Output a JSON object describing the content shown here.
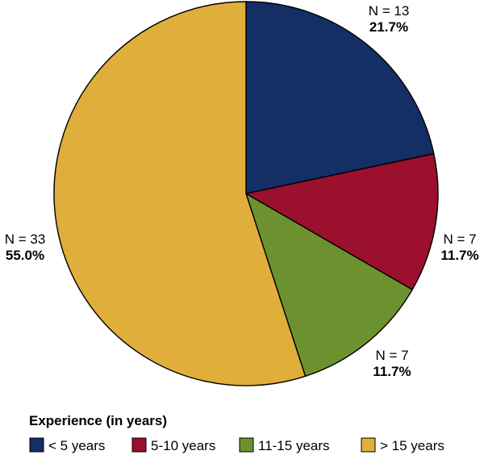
{
  "chart_data": {
    "type": "pie",
    "title": "",
    "legend_title": "Experience (in years)",
    "legend_position": "bottom",
    "start_angle": "top (12 o'clock), clockwise",
    "slices": [
      {
        "label": "< 5 years",
        "count": 13,
        "count_label": "N = 13",
        "percent": 21.7,
        "percent_label": "21.7%",
        "color": "#142f65"
      },
      {
        "label": "5-10 years",
        "count": 7,
        "count_label": "N = 7",
        "percent": 11.7,
        "percent_label": "11.7%",
        "color": "#9a102d"
      },
      {
        "label": "11-15 years",
        "count": 7,
        "count_label": "N = 7",
        "percent": 11.7,
        "percent_label": "11.7%",
        "color": "#6c9230"
      },
      {
        "label": "> 15 years",
        "count": 33,
        "count_label": "N = 33",
        "percent": 55.0,
        "percent_label": "55.0%",
        "color": "#e0ae3b"
      }
    ]
  }
}
